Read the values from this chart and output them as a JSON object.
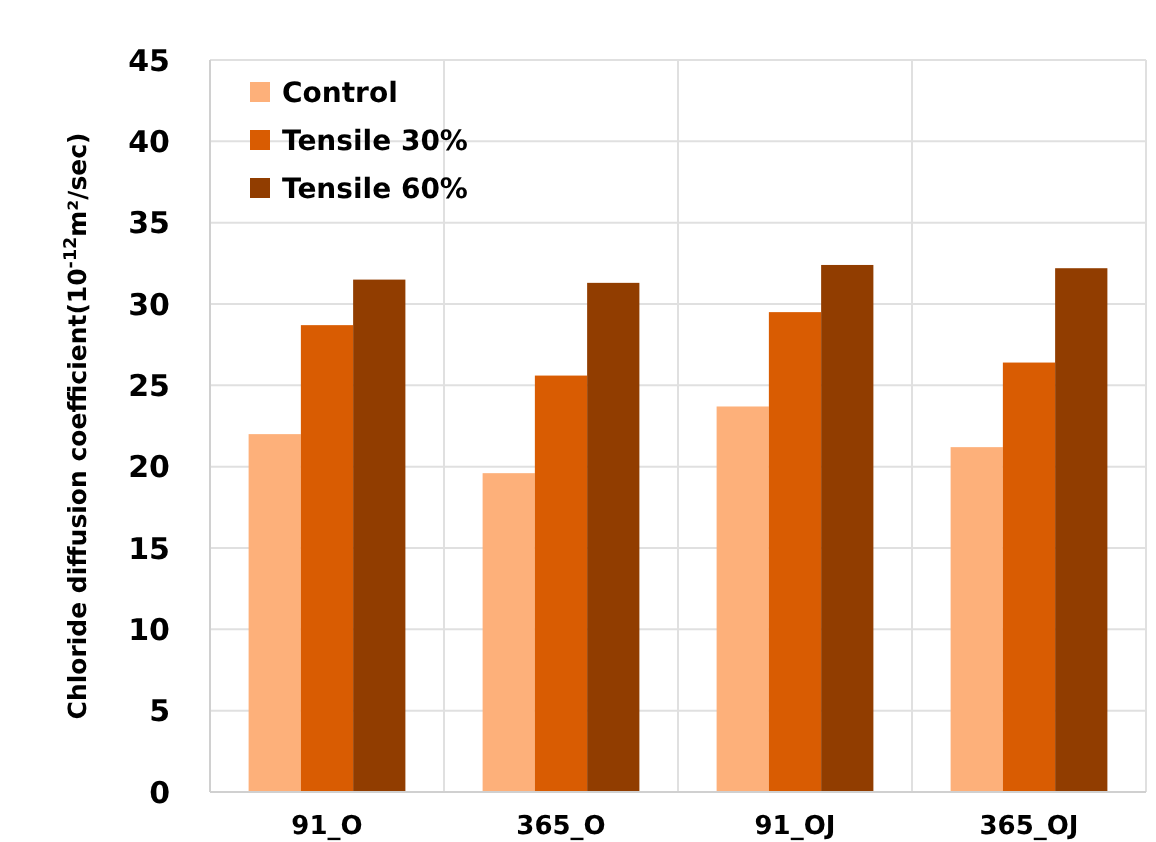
{
  "chart_data": {
    "type": "bar",
    "ylabel": "Chloride diffusion coefficient(10$^{-12}$m²/sec)",
    "categories": [
      "91_O",
      "365_O",
      "91_OJ",
      "365_OJ"
    ],
    "series": [
      {
        "name": "Control",
        "color": "#fdb07a",
        "values": [
          22.0,
          19.6,
          23.7,
          21.2
        ]
      },
      {
        "name": "Tensile 30%",
        "color": "#d95c02",
        "values": [
          28.7,
          25.6,
          29.5,
          26.4
        ]
      },
      {
        "name": "Tensile 60%",
        "color": "#913d00",
        "values": [
          31.5,
          31.3,
          32.4,
          32.2
        ]
      }
    ],
    "ylim": [
      0,
      45
    ],
    "yticks": [
      0,
      5,
      10,
      15,
      20,
      25,
      30,
      35,
      40,
      45
    ],
    "grid": true,
    "legend": "top left"
  }
}
